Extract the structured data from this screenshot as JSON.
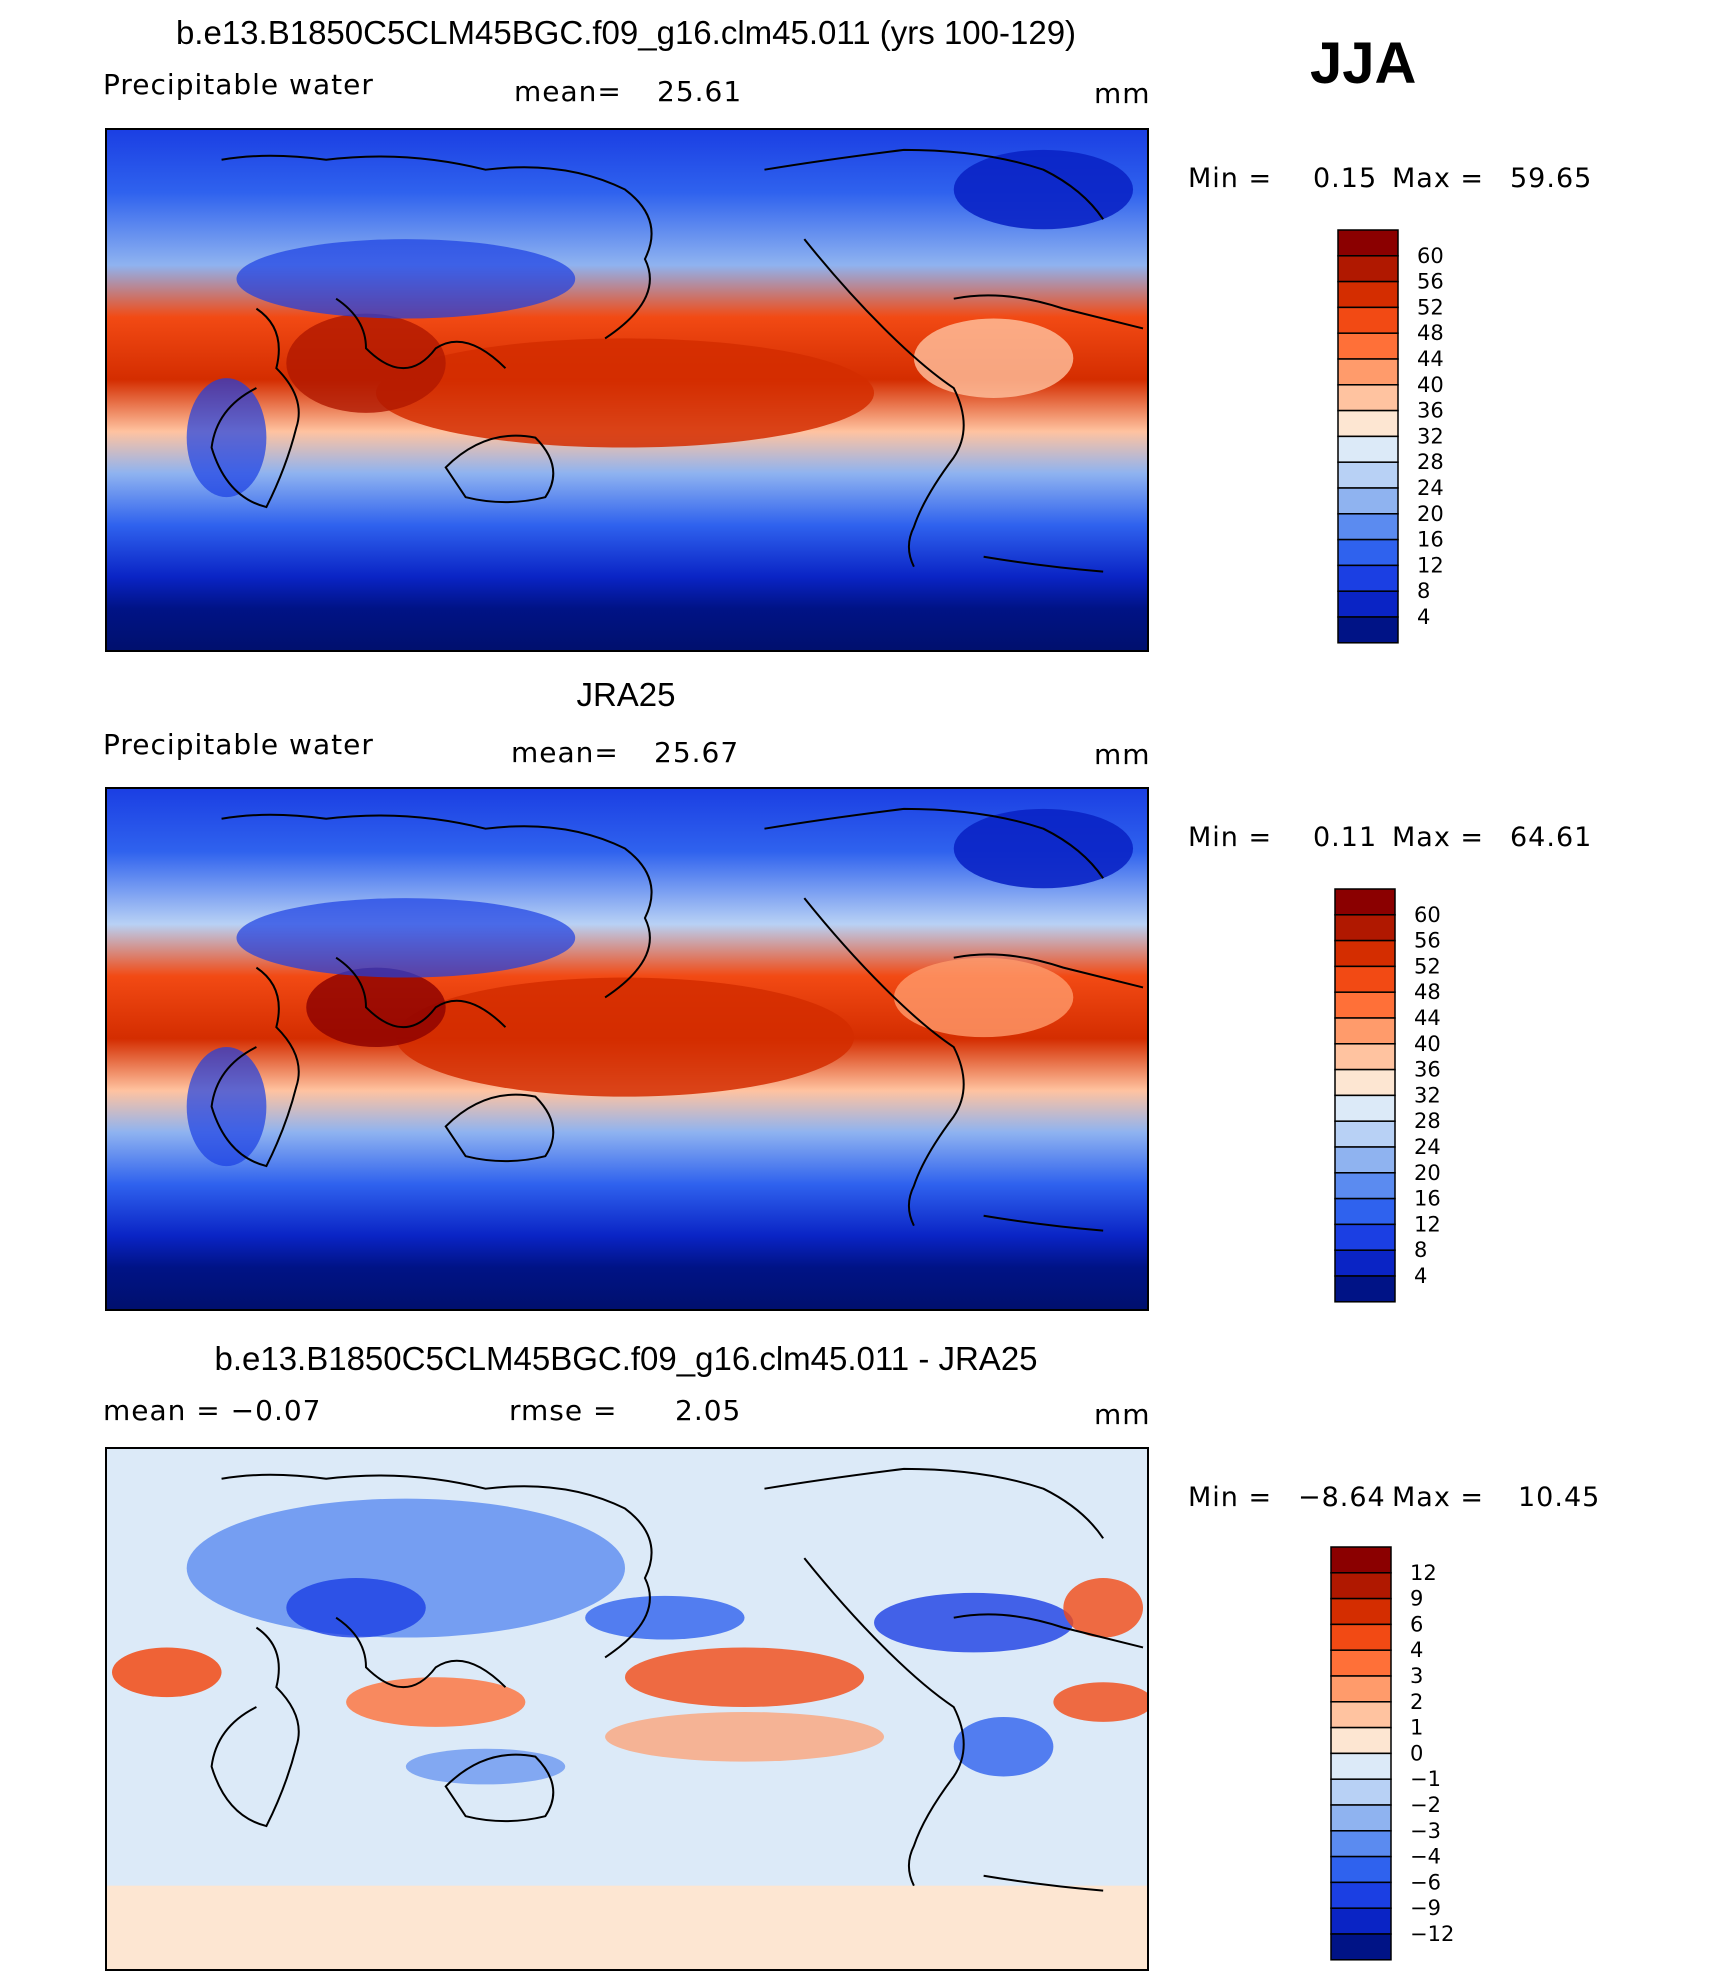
{
  "season": "JJA",
  "panels": [
    {
      "title": "b.e13.B1850C5CLM45BGC.f09_g16.clm45.011 (yrs 100-129)",
      "left": "Precipitable  water",
      "middle_label": "mean=",
      "middle_value": "25.61",
      "units": "mm",
      "min_label": "Min  =",
      "min_value": "0.15",
      "max_label": "Max  =",
      "max_value": "59.65",
      "colorbar": {
        "labels": [
          "60",
          "56",
          "52",
          "48",
          "44",
          "40",
          "36",
          "32",
          "28",
          "24",
          "20",
          "16",
          "12",
          "8",
          "4"
        ],
        "colors": [
          "#8b0000",
          "#b01800",
          "#d42d00",
          "#f24a14",
          "#ff7038",
          "#ff9b6b",
          "#ffc3a0",
          "#fde6d2",
          "#dceaf8",
          "#b8d1f5",
          "#8fb3f0",
          "#5b8bf0",
          "#2f62ee",
          "#1b3fe3",
          "#0a24c5",
          "#001386"
        ]
      }
    },
    {
      "title": "JRA25",
      "left": "Precipitable  water",
      "middle_label": "mean=",
      "middle_value": "25.67",
      "units": "mm",
      "min_label": "Min  =",
      "min_value": "0.11",
      "max_label": "Max  =",
      "max_value": "64.61",
      "colorbar": {
        "labels": [
          "60",
          "56",
          "52",
          "48",
          "44",
          "40",
          "36",
          "32",
          "28",
          "24",
          "20",
          "16",
          "12",
          "8",
          "4"
        ],
        "colors": [
          "#8b0000",
          "#b01800",
          "#d42d00",
          "#f24a14",
          "#ff7038",
          "#ff9b6b",
          "#ffc3a0",
          "#fde6d2",
          "#dceaf8",
          "#b8d1f5",
          "#8fb3f0",
          "#5b8bf0",
          "#2f62ee",
          "#1b3fe3",
          "#0a24c5",
          "#001386"
        ]
      }
    },
    {
      "title": "b.e13.B1850C5CLM45BGC.f09_g16.clm45.011 - JRA25",
      "left": "mean  =     −0.07",
      "middle_label": "rmse  =",
      "middle_value": "2.05",
      "units": "mm",
      "min_label": "Min  =",
      "min_value": "−8.64",
      "max_label": "Max  =",
      "max_value": "10.45",
      "colorbar": {
        "labels": [
          "12",
          "9",
          "6",
          "4",
          "3",
          "2",
          "1",
          "0",
          "−1",
          "−2",
          "−3",
          "−4",
          "−6",
          "−9",
          "−12"
        ],
        "colors": [
          "#8b0000",
          "#b01800",
          "#d42d00",
          "#f24a14",
          "#ff7038",
          "#ff9b6b",
          "#ffc3a0",
          "#fde6d2",
          "#dceaf8",
          "#b8d1f5",
          "#8fb3f0",
          "#5b8bf0",
          "#2f62ee",
          "#1b3fe3",
          "#0a24c5",
          "#001386"
        ]
      }
    }
  ]
}
